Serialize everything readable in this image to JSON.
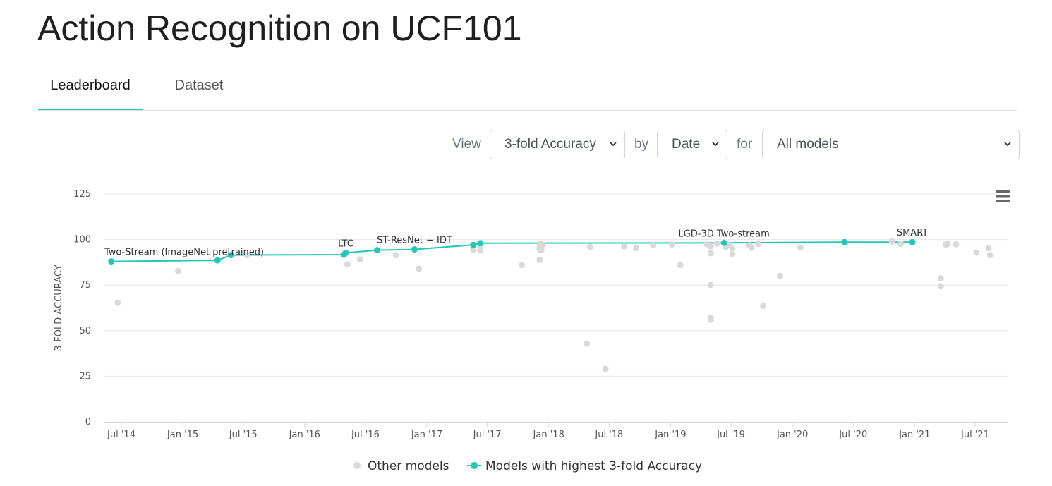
{
  "page": {
    "title": "Action Recognition on UCF101"
  },
  "tabs": [
    {
      "label": "Leaderboard",
      "active": true
    },
    {
      "label": "Dataset",
      "active": false
    }
  ],
  "controls": {
    "view_label": "View",
    "metric": "3-fold Accuracy",
    "by_label": "by",
    "group": "Date",
    "for_label": "for",
    "filter": "All models"
  },
  "menu": {
    "icon": "hamburger-menu-icon"
  },
  "colors": {
    "accent": "#21c8b5",
    "other": "#d9d9d9",
    "grid": "#e6e6e6",
    "axis": "#ccd6eb"
  },
  "chart_data": {
    "type": "scatter",
    "ylabel": "3-FOLD ACCURACY",
    "xlabel": "",
    "ylim": [
      0,
      125
    ],
    "yticks": [
      0,
      25,
      50,
      75,
      100,
      125
    ],
    "xticks": [
      {
        "date": "2014-07-01",
        "label": "Jul '14"
      },
      {
        "date": "2015-01-01",
        "label": "Jan '15"
      },
      {
        "date": "2015-07-01",
        "label": "Jul '15"
      },
      {
        "date": "2016-01-01",
        "label": "Jan '16"
      },
      {
        "date": "2016-07-01",
        "label": "Jul '16"
      },
      {
        "date": "2017-01-01",
        "label": "Jan '17"
      },
      {
        "date": "2017-07-01",
        "label": "Jul '17"
      },
      {
        "date": "2018-01-01",
        "label": "Jan '18"
      },
      {
        "date": "2018-07-01",
        "label": "Jul '18"
      },
      {
        "date": "2019-01-01",
        "label": "Jan '19"
      },
      {
        "date": "2019-07-01",
        "label": "Jul '19"
      },
      {
        "date": "2020-01-01",
        "label": "Jan '20"
      },
      {
        "date": "2020-07-01",
        "label": "Jul '20"
      },
      {
        "date": "2021-01-01",
        "label": "Jan '21"
      },
      {
        "date": "2021-07-01",
        "label": "Jul '21"
      }
    ],
    "grid": true,
    "legend_position": "bottom-center",
    "series": [
      {
        "name": "Other models",
        "color": "#d9d9d9",
        "points": [
          {
            "x": "2014-06-20",
            "y": 65.4
          },
          {
            "x": "2014-12-18",
            "y": 82.6
          },
          {
            "x": "2015-07-12",
            "y": 91.5
          },
          {
            "x": "2016-05-08",
            "y": 86.4
          },
          {
            "x": "2016-06-15",
            "y": 89.1
          },
          {
            "x": "2016-09-30",
            "y": 91.4
          },
          {
            "x": "2016-12-08",
            "y": 84.0
          },
          {
            "x": "2017-05-20",
            "y": 94.5
          },
          {
            "x": "2017-06-10",
            "y": 94.0
          },
          {
            "x": "2017-06-10",
            "y": 95.8
          },
          {
            "x": "2017-10-12",
            "y": 86.0
          },
          {
            "x": "2017-12-05",
            "y": 94.6
          },
          {
            "x": "2017-12-05",
            "y": 96.0
          },
          {
            "x": "2017-12-05",
            "y": 97.6
          },
          {
            "x": "2017-12-10",
            "y": 94.2
          },
          {
            "x": "2017-12-15",
            "y": 97.3
          },
          {
            "x": "2017-12-05",
            "y": 88.9
          },
          {
            "x": "2018-04-25",
            "y": 42.9
          },
          {
            "x": "2018-05-05",
            "y": 96.0
          },
          {
            "x": "2018-06-20",
            "y": 29.0
          },
          {
            "x": "2018-08-15",
            "y": 96.3
          },
          {
            "x": "2018-09-20",
            "y": 95.3
          },
          {
            "x": "2018-11-10",
            "y": 96.8
          },
          {
            "x": "2019-01-05",
            "y": 97.3
          },
          {
            "x": "2019-01-30",
            "y": 86.0
          },
          {
            "x": "2019-04-20",
            "y": 97.4
          },
          {
            "x": "2019-05-01",
            "y": 96.2
          },
          {
            "x": "2019-05-01",
            "y": 92.5
          },
          {
            "x": "2019-05-01",
            "y": 75.1
          },
          {
            "x": "2019-05-01",
            "y": 57.0
          },
          {
            "x": "2019-05-01",
            "y": 56.0
          },
          {
            "x": "2019-05-20",
            "y": 97.8
          },
          {
            "x": "2019-06-15",
            "y": 96.0
          },
          {
            "x": "2019-06-25",
            "y": 97.0
          },
          {
            "x": "2019-07-05",
            "y": 95.0
          },
          {
            "x": "2019-07-05",
            "y": 92.1
          },
          {
            "x": "2019-08-25",
            "y": 96.9
          },
          {
            "x": "2019-09-01",
            "y": 95.5
          },
          {
            "x": "2019-09-20",
            "y": 97.6
          },
          {
            "x": "2019-10-05",
            "y": 63.6
          },
          {
            "x": "2019-11-25",
            "y": 80.1
          },
          {
            "x": "2020-01-25",
            "y": 95.6
          },
          {
            "x": "2020-10-25",
            "y": 99.0
          },
          {
            "x": "2020-11-20",
            "y": 97.7
          },
          {
            "x": "2021-03-20",
            "y": 78.7
          },
          {
            "x": "2021-03-20",
            "y": 74.4
          },
          {
            "x": "2021-04-05",
            "y": 97.2
          },
          {
            "x": "2021-04-10",
            "y": 97.7
          },
          {
            "x": "2021-05-05",
            "y": 97.4
          },
          {
            "x": "2021-07-05",
            "y": 92.9
          },
          {
            "x": "2021-08-10",
            "y": 95.3
          },
          {
            "x": "2021-08-15",
            "y": 91.5
          }
        ]
      },
      {
        "name": "Models with highest 3-fold Accuracy",
        "color": "#21c8b5",
        "points": [
          {
            "x": "2014-06-01",
            "y": 88.0,
            "label": "Two-Stream (ImageNet pretrained)"
          },
          {
            "x": "2015-04-15",
            "y": 88.6
          },
          {
            "x": "2015-05-25",
            "y": 91.5
          },
          {
            "x": "2016-04-28",
            "y": 91.7
          },
          {
            "x": "2016-05-03",
            "y": 92.7,
            "label": "LTC"
          },
          {
            "x": "2016-08-05",
            "y": 94.2
          },
          {
            "x": "2016-11-25",
            "y": 94.6,
            "label": "ST-ResNet + IDT"
          },
          {
            "x": "2017-05-20",
            "y": 97.1
          },
          {
            "x": "2017-06-10",
            "y": 98.0
          },
          {
            "x": "2019-06-10",
            "y": 98.2,
            "label": "LGD-3D Two-stream"
          },
          {
            "x": "2020-06-05",
            "y": 98.6
          },
          {
            "x": "2020-12-25",
            "y": 98.6,
            "label": "SMART"
          }
        ]
      }
    ]
  }
}
